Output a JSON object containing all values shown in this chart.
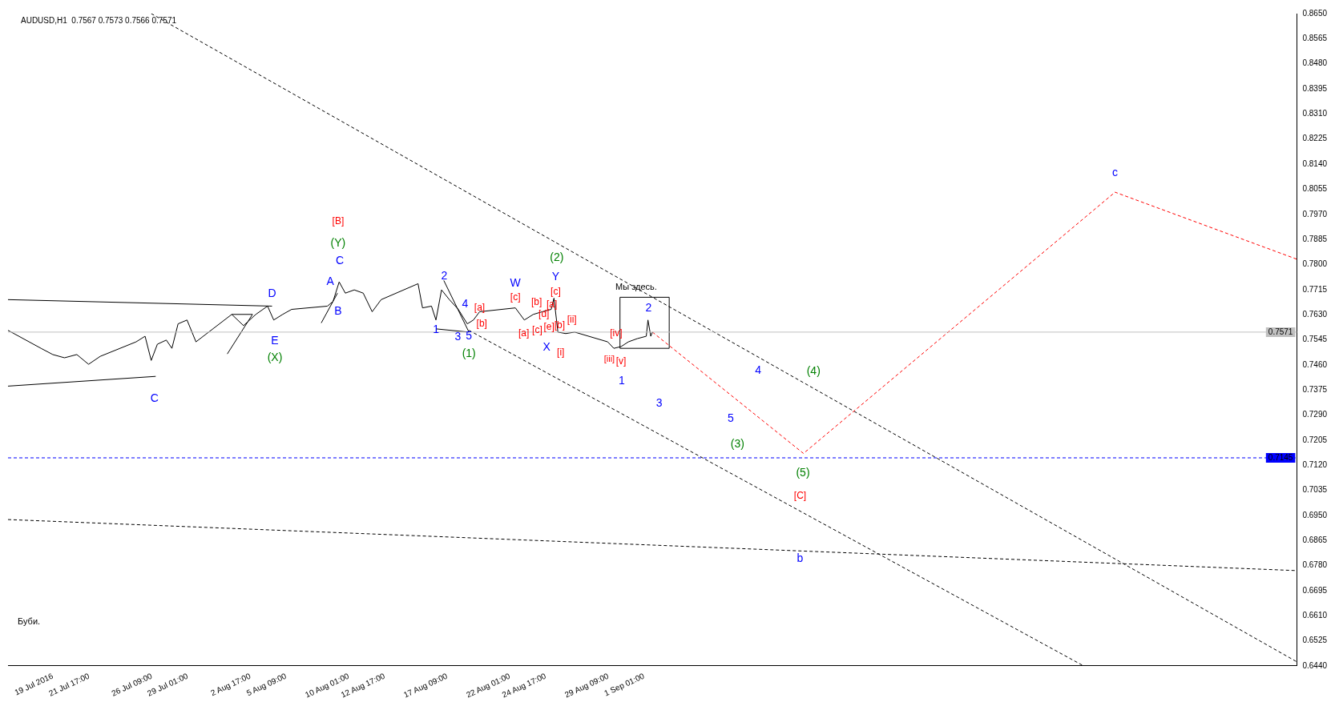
{
  "chart_data": {
    "type": "line",
    "title": "AUDUSD,H1  0.7567 0.7573 0.7566 0.7571",
    "legend": false,
    "grid": false,
    "xlim": [
      "2016-07-15T16:00",
      "2016-10-19T16:00"
    ],
    "ylim": [
      0.644,
      0.865
    ],
    "xticks": [
      {
        "value": "2016-07-19",
        "label": "19 Jul 2016"
      },
      {
        "value": "2016-07-21T17:00",
        "label": "21 Jul 17:00"
      },
      {
        "value": "2016-07-26T09:00",
        "label": "26 Jul 09:00"
      },
      {
        "value": "2016-07-29T01:00",
        "label": "29 Jul 01:00"
      },
      {
        "value": "2016-08-02T17:00",
        "label": "2 Aug 17:00"
      },
      {
        "value": "2016-08-05T09:00",
        "label": "5 Aug 09:00"
      },
      {
        "value": "2016-08-10T01:00",
        "label": "10 Aug 01:00"
      },
      {
        "value": "2016-08-12T17:00",
        "label": "12 Aug 17:00"
      },
      {
        "value": "2016-08-17T09:00",
        "label": "17 Aug 09:00"
      },
      {
        "value": "2016-08-22T01:00",
        "label": "22 Aug 01:00"
      },
      {
        "value": "2016-08-24T17:00",
        "label": "24 Aug 17:00"
      },
      {
        "value": "2016-08-29T09:00",
        "label": "29 Aug 09:00"
      },
      {
        "value": "2016-09-01T01:00",
        "label": "1 Sep 01:00"
      }
    ],
    "yticks": [
      {
        "value": 0.644,
        "label": "0.6440"
      },
      0.6525,
      {
        "value": 0.661,
        "label": "0.6610"
      },
      0.6695,
      {
        "value": 0.678,
        "label": "0.6780"
      },
      0.6865,
      {
        "value": 0.695,
        "label": "0.6950"
      },
      0.7035,
      {
        "value": 0.712,
        "label": "0.7120"
      },
      0.7205,
      {
        "value": 0.729,
        "label": "0.7290"
      },
      0.7375,
      {
        "value": 0.746,
        "label": "0.7460"
      },
      0.7545,
      {
        "value": 0.763,
        "label": "0.7630"
      },
      0.7715,
      {
        "value": 0.78,
        "label": "0.7800"
      },
      0.7885,
      {
        "value": 0.797,
        "label": "0.7970"
      },
      0.8055,
      {
        "value": 0.814,
        "label": "0.8140"
      },
      0.8225,
      {
        "value": 0.831,
        "label": "0.8310"
      },
      0.8395,
      {
        "value": 0.848,
        "label": "0.8480"
      },
      0.8565,
      {
        "value": 0.865,
        "label": "0.8650"
      }
    ],
    "ref_lines": [
      {
        "axis": "y",
        "value": 0.7571,
        "label": "0.7571",
        "color": "#c0c0c0",
        "line_style": "solid"
      },
      {
        "axis": "y",
        "value": 0.7145,
        "label": "0.7145",
        "color": "#0000ff",
        "line_style": "dashed"
      }
    ],
    "annotations": [
      "Буби.",
      "Мы здесь.",
      "[B]",
      "[c]",
      "[a]",
      "[b]",
      "[a]",
      "[b]",
      "[c]",
      "[d]",
      "[e]",
      "[a]",
      "[b]",
      "[c]",
      "[ii]",
      "[iv]",
      "[i]",
      "[iii]",
      "[v]",
      "[C]",
      "C",
      "A",
      "D",
      "B",
      "E",
      "C",
      "2",
      "4",
      "1",
      "3",
      "5",
      "W",
      "Y",
      "X",
      "1",
      "2",
      "3",
      "4",
      "5",
      "c",
      "b",
      "(Y)",
      "(X)",
      "(2)",
      "(1)",
      "(4)",
      "(3)",
      "(5)"
    ],
    "series": [
      {
        "color": "#000000",
        "line_style": "solid",
        "marker": "none",
        "x": [
          "2016-07-15T16:00",
          "2016-07-18T03:00",
          "2016-07-19T00:00",
          "2016-07-19T21:00",
          "2016-07-20T19:00",
          "2016-07-21T16:00",
          "2016-07-22T13:00",
          "2016-07-25T05:00",
          "2016-07-25T21:00",
          "2016-07-26T08:00",
          "2016-07-26T19:00",
          "2016-07-27T11:00",
          "2016-07-27T21:00",
          "2016-07-28T08:00",
          "2016-07-29T00:00",
          "2016-07-29T16:00",
          "2016-08-01T08:00",
          "2016-08-02T05:00",
          "2016-08-03T03:00",
          "2016-08-04T00:00",
          "2016-08-04T11:00",
          "2016-08-05T03:00",
          "2016-08-05T19:00",
          "2016-08-08T11:00",
          "2016-08-08T21:00",
          "2016-08-09T08:00",
          "2016-08-09T19:00",
          "2016-08-10T11:00",
          "2016-08-11T03:00",
          "2016-08-11T19:00",
          "2016-08-12T11:00",
          "2016-08-15T05:00",
          "2016-08-15T13:00",
          "2016-08-16T05:00",
          "2016-08-16T13:00",
          "2016-08-16T23:00",
          "2016-08-17T13:00",
          "2016-08-18T05:00",
          "2016-08-18T21:00",
          "2016-08-19T08:00",
          "2016-08-19T19:00",
          "2016-08-22T11:00",
          "2016-08-23T03:00",
          "2016-08-23T19:00",
          "2016-08-24T11:00",
          "2016-08-25T03:00",
          "2016-08-25T08:00",
          "2016-08-25T15:00",
          "2016-08-26T05:00",
          "2016-08-26T21:00",
          "2016-08-29T08:00",
          "2016-08-29T19:00",
          "2016-08-30T08:00",
          "2016-08-30T21:00",
          "2016-08-31T13:00",
          "2016-09-01T05:00",
          "2016-09-01T08:00",
          "2016-09-01T13:00",
          "2016-09-01T16:00"
        ],
        "values": [
          0.7577,
          0.7516,
          0.7495,
          0.7484,
          0.7495,
          0.7462,
          0.7489,
          0.7538,
          0.7557,
          0.7475,
          0.753,
          0.7544,
          0.7516,
          0.7599,
          0.7612,
          0.7538,
          0.7631,
          0.7593,
          0.7631,
          0.7659,
          0.7612,
          0.7631,
          0.7648,
          0.7659,
          0.7675,
          0.7741,
          0.7703,
          0.7714,
          0.7703,
          0.764,
          0.7681,
          0.7735,
          0.7653,
          0.7659,
          0.7612,
          0.7714,
          0.7681,
          0.7648,
          0.7599,
          0.7612,
          0.764,
          0.7653,
          0.7612,
          0.7631,
          0.764,
          0.7648,
          0.7686,
          0.7571,
          0.7566,
          0.7571,
          0.7538,
          0.7516,
          0.7522,
          0.7538,
          0.7549,
          0.7557,
          0.7612,
          0.7557,
          0.7571
        ]
      },
      {
        "color": "#ff0000",
        "line_style": "dashed",
        "marker": "none",
        "x": [
          "2016-09-01T16:00",
          "2016-09-12T22:00",
          "2016-10-06T03:00",
          "2016-10-19T16:00"
        ],
        "values": [
          0.7571,
          0.716,
          0.8045,
          0.7818
        ]
      },
      {
        "color": "#000000",
        "line_style": "dashed",
        "marker": "none",
        "x": [
          "2016-07-26T08:00",
          "2016-10-19T16:00"
        ],
        "values": [
          0.865,
          0.6454
        ]
      },
      {
        "color": "#000000",
        "line_style": "dashed",
        "marker": "none",
        "x": [
          "2016-08-19T00:00",
          "2016-10-03T19:00"
        ],
        "values": [
          0.7577,
          0.644
        ]
      },
      {
        "color": "#000000",
        "line_style": "dashed",
        "marker": "none",
        "x": [
          "2016-07-15T16:00",
          "2016-10-19T16:00"
        ],
        "values": [
          0.6936,
          0.6763
        ]
      },
      {
        "color": "#000000",
        "line_style": "solid",
        "marker": "none",
        "x": [
          "2016-07-15T16:00",
          "2016-08-04T08:00"
        ],
        "values": [
          0.7681,
          0.7659
        ]
      },
      {
        "color": "#000000",
        "line_style": "solid",
        "marker": "none",
        "x": [
          "2016-07-15T16:00",
          "2016-07-26T16:00"
        ],
        "values": [
          0.7388,
          0.7421
        ]
      },
      {
        "color": "#000000",
        "line_style": "solid",
        "marker": "none",
        "x": [
          "2016-08-01T00:00",
          "2016-08-02T21:00"
        ],
        "values": [
          0.7497,
          0.7631
        ]
      },
      {
        "color": "#000000",
        "line_style": "solid",
        "marker": "none",
        "x": [
          "2016-08-01T08:00",
          "2016-08-02T21:00"
        ],
        "values": [
          0.7631,
          0.7631
        ]
      },
      {
        "color": "#000000",
        "line_style": "solid",
        "marker": "none",
        "x": [
          "2016-08-08T00:00",
          "2016-08-09T05:00"
        ],
        "values": [
          0.7602,
          0.7703
        ]
      },
      {
        "color": "#000000",
        "line_style": "solid",
        "marker": "none",
        "x": [
          "2016-08-16T13:00",
          "2016-08-19T00:00"
        ],
        "values": [
          0.7582,
          0.7571
        ]
      },
      {
        "color": "#000000",
        "line_style": "solid",
        "marker": "none",
        "x": [
          "2016-08-17T03:00",
          "2016-08-19T00:00"
        ],
        "values": [
          0.7746,
          0.7571
        ]
      },
      {
        "color": "#000000",
        "line_style": "solid",
        "marker": "none",
        "x": [
          "2016-08-30T06:00",
          "2016-09-02T22:00"
        ],
        "values": [
          0.7689,
          0.7689
        ]
      },
      {
        "color": "#000000",
        "line_style": "solid",
        "marker": "none",
        "x": [
          "2016-08-30T06:00",
          "2016-09-02T22:00"
        ],
        "values": [
          0.7516,
          0.7516
        ]
      },
      {
        "color": "#000000",
        "line_style": "solid",
        "marker": "none",
        "x": [
          "2016-08-30T06:00",
          "2016-08-30T06:00"
        ],
        "values": [
          0.7516,
          0.7689
        ]
      },
      {
        "color": "#000000",
        "line_style": "solid",
        "marker": "none",
        "x": [
          "2016-09-02T22:00",
          "2016-09-02T22:00"
        ],
        "values": [
          0.7516,
          0.7689
        ]
      }
    ]
  }
}
